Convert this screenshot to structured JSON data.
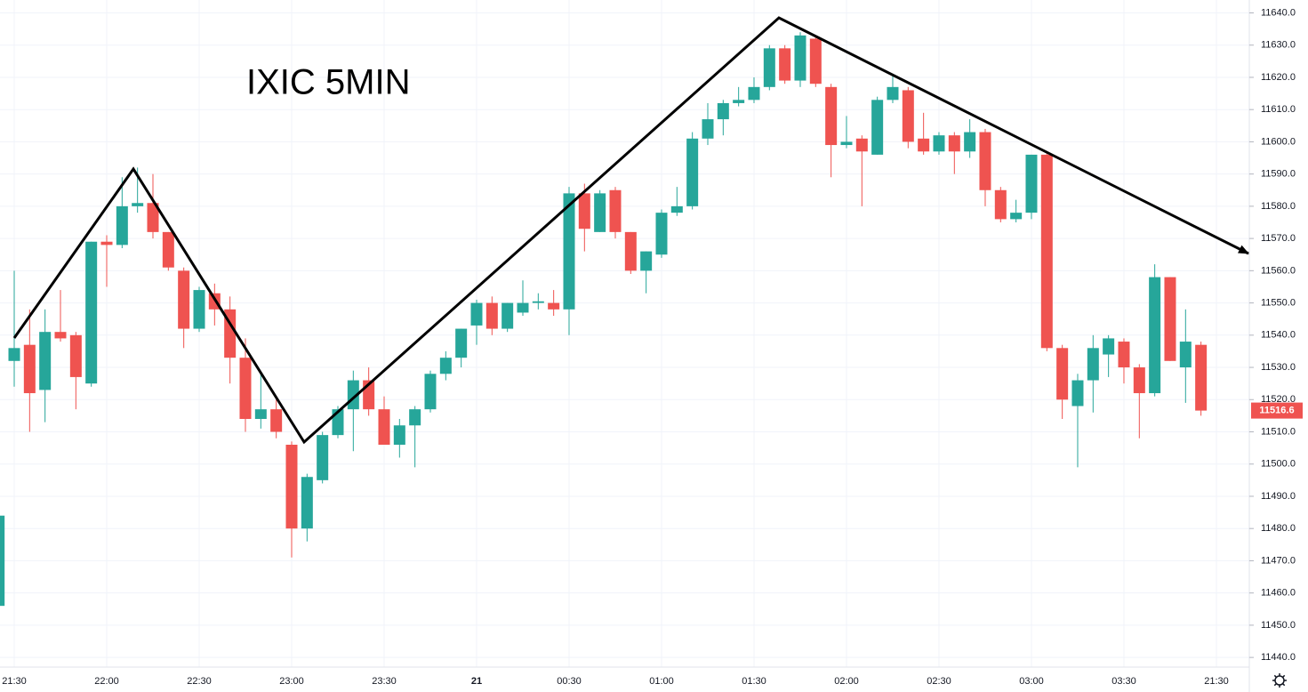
{
  "chart_data": {
    "type": "candlestick",
    "title": "IXIC 5MIN",
    "categories": [
      null,
      "21:30",
      null,
      null,
      null,
      null,
      null,
      "22:00",
      null,
      null,
      null,
      null,
      null,
      "22:30",
      null,
      null,
      null,
      null,
      null,
      "23:00",
      null,
      null,
      null,
      null,
      null,
      "23:30",
      null,
      null,
      null,
      null,
      null,
      "21",
      null,
      null,
      null,
      null,
      null,
      "00:30",
      null,
      null,
      null,
      null,
      null,
      "01:00",
      null,
      null,
      null,
      null,
      null,
      "01:30",
      null,
      null,
      null,
      null,
      null,
      "02:00",
      null,
      null,
      null,
      null,
      null,
      "02:30",
      null,
      null,
      null,
      null,
      null,
      "03:00",
      null,
      null,
      null,
      null,
      null,
      "03:30",
      null,
      null,
      null,
      null,
      null,
      "21:30"
    ],
    "open": [
      11456,
      11532,
      11537,
      11523,
      11541,
      11540,
      11525,
      11569,
      11568,
      11580,
      11581,
      11572,
      11560,
      11542,
      11553,
      11548,
      11533,
      11514,
      11517,
      11506,
      11480,
      11495,
      11509,
      11517,
      11526,
      11517,
      11506,
      11512,
      11517,
      11528,
      11533,
      11543,
      11550,
      11542,
      11547,
      11550,
      11550,
      11548,
      11584,
      11572,
      11585,
      11572,
      11560,
      11565,
      11578,
      11580,
      11601,
      11607,
      11612,
      11613,
      11617,
      11629,
      11619,
      11632,
      11617,
      11599,
      11601,
      11596,
      11613,
      11616,
      11601,
      11597,
      11602,
      11597,
      11603,
      11585,
      11576,
      11578,
      11596,
      11536,
      11518,
      11526,
      11534,
      11538,
      11530,
      11522,
      11558,
      11530,
      11537,
      null
    ],
    "high": [
      11484,
      11560,
      11548,
      11548,
      11554,
      11541,
      11569,
      11571,
      11589,
      11592,
      11590,
      11572,
      11561,
      11555,
      11556,
      11552,
      11539,
      11528,
      11520,
      11507,
      11497,
      11510,
      11518,
      11529,
      11530,
      11521,
      11514,
      11518,
      11529,
      11535,
      11542,
      11551,
      11552,
      11550,
      11557,
      11553,
      11554,
      11586,
      11587,
      11585,
      11586,
      11572,
      11566,
      11579,
      11586,
      11603,
      11612,
      11613,
      11617,
      11620,
      11630,
      11630,
      11634,
      11633,
      11618,
      11608,
      11602,
      11614,
      11621,
      11617,
      11609,
      11603,
      11603,
      11607,
      11604,
      11586,
      11582,
      11596,
      11597,
      11537,
      11528,
      11540,
      11540,
      11539,
      11531,
      11562,
      11558,
      11548,
      11538,
      null
    ],
    "low": [
      11456,
      11524,
      11510,
      11513,
      11538,
      11517,
      11524,
      11555,
      11567,
      11578,
      11570,
      11560,
      11536,
      11541,
      11543,
      11525,
      11510,
      11511,
      11508,
      11471,
      11476,
      11494,
      11508,
      11504,
      11515,
      11506,
      11502,
      11499,
      11516,
      11526,
      11530,
      11537,
      11540,
      11541,
      11546,
      11548,
      11546,
      11540,
      11566,
      11572,
      11570,
      11559,
      11553,
      11564,
      11577,
      11579,
      11599,
      11602,
      11611,
      11612,
      11616,
      11618,
      11617,
      11617,
      11589,
      11598,
      11580,
      11596,
      11612,
      11598,
      11596,
      11596,
      11590,
      11595,
      11580,
      11575,
      11575,
      11576,
      11535,
      11514,
      11499,
      11516,
      11527,
      11525,
      11508,
      11521,
      11532,
      11519,
      11515,
      null
    ],
    "close": [
      11484,
      11536,
      11522,
      11541,
      11539,
      11527,
      11569,
      11568,
      11580,
      11581,
      11572,
      11561,
      11542,
      11554,
      11548,
      11533,
      11514,
      11517,
      11510,
      11480,
      11496,
      11509,
      11517,
      11526,
      11517,
      11506,
      11512,
      11517,
      11528,
      11533,
      11542,
      11550,
      11542,
      11550,
      11550,
      11550.5,
      11548,
      11584,
      11573,
      11584,
      11572,
      11560,
      11566,
      11578,
      11580,
      11601,
      11607,
      11612,
      11613,
      11617,
      11629,
      11619,
      11633,
      11618,
      11599,
      11600,
      11597,
      11613,
      11617,
      11600,
      11597,
      11602,
      11597,
      11603,
      11585,
      11576,
      11578,
      11596,
      11536,
      11520,
      11526,
      11536,
      11539,
      11530,
      11522,
      11558,
      11532,
      11538,
      11516.6,
      null
    ],
    "up_color": "#26a69a",
    "down_color": "#ef5350",
    "last_price": 11516.6,
    "ylim": [
      11437,
      11644
    ],
    "yticks": [
      {
        "value": 11440,
        "label": "11440.0"
      },
      {
        "value": 11450,
        "label": "11450.0"
      },
      {
        "value": 11460,
        "label": "11460.0"
      },
      {
        "value": 11470,
        "label": "11470.0"
      },
      {
        "value": 11480,
        "label": "11480.0"
      },
      {
        "value": 11490,
        "label": "11490.0"
      },
      {
        "value": 11500,
        "label": "11500.0"
      },
      {
        "value": 11510,
        "label": "11510.0"
      },
      {
        "value": 11520,
        "label": "11520.0"
      },
      {
        "value": 11530,
        "label": "11530.0"
      },
      {
        "value": 11540,
        "label": "11540.0"
      },
      {
        "value": 11550,
        "label": "11550.0"
      },
      {
        "value": 11560,
        "label": "11560.0"
      },
      {
        "value": 11570,
        "label": "11570.0"
      },
      {
        "value": 11580,
        "label": "11580.0"
      },
      {
        "value": 11590,
        "label": "11590.0"
      },
      {
        "value": 11600,
        "label": "11600.0"
      },
      {
        "value": 11610,
        "label": "11610.0"
      },
      {
        "value": 11620,
        "label": "11620.0"
      },
      {
        "value": 11630,
        "label": "11630.0"
      },
      {
        "value": 11640,
        "label": "11640.0"
      }
    ],
    "grid": true
  }
}
